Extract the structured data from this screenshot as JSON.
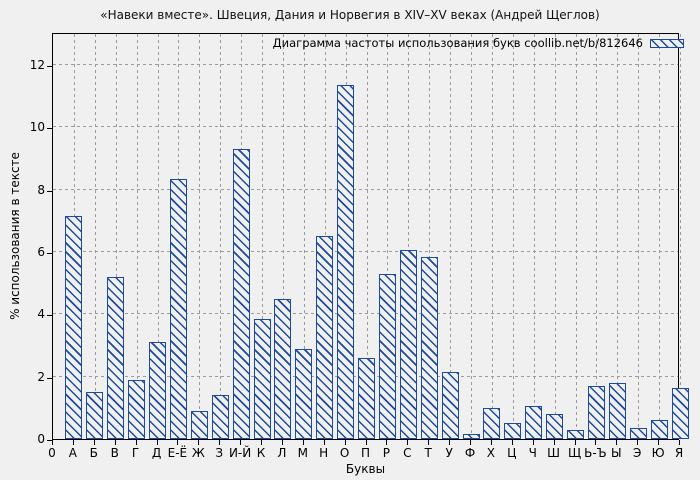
{
  "title": "«Навеки вместе». Швеция, Дания и Норвегия в XIV–XV веках (Андрей Щеглов)",
  "colors": {
    "bar": "#1b4a9e",
    "grid": "#9c9c9c",
    "background": "#f0f0f0",
    "plot_border": "#000000",
    "text": "#000000"
  },
  "chart_data": {
    "type": "bar",
    "title": "«Навеки вместе». Швеция, Дания и Норвегия в XIV–XV веках (Андрей Щеглов)",
    "legend": "Диаграмма частоты использования букв coollib.net/b/812646",
    "legend_position": "top-right",
    "xlabel": "Буквы",
    "ylabel": "% использования в тексте",
    "origin_label": "0",
    "categories": [
      "А",
      "Б",
      "В",
      "Г",
      "Д",
      "Е-Ё",
      "Ж",
      "З",
      "И-Й",
      "К",
      "Л",
      "М",
      "Н",
      "О",
      "П",
      "Р",
      "С",
      "Т",
      "У",
      "Ф",
      "Х",
      "Ц",
      "Ч",
      "Ш",
      "Щ",
      "Ь-Ъ",
      "Ы",
      "Э",
      "Ю",
      "Я"
    ],
    "values": [
      7.15,
      1.5,
      5.2,
      1.9,
      3.1,
      8.35,
      0.9,
      1.4,
      9.3,
      3.85,
      4.5,
      2.9,
      6.5,
      11.35,
      2.6,
      5.3,
      6.05,
      5.85,
      2.15,
      0.15,
      1.0,
      0.5,
      1.05,
      0.8,
      0.3,
      1.7,
      1.8,
      0.35,
      0.6,
      1.65
    ],
    "yticks": [
      0,
      2,
      4,
      6,
      8,
      10,
      12
    ],
    "ylim": [
      0,
      13.06
    ],
    "grid": "dashed",
    "hatch": "diagonal-down"
  }
}
